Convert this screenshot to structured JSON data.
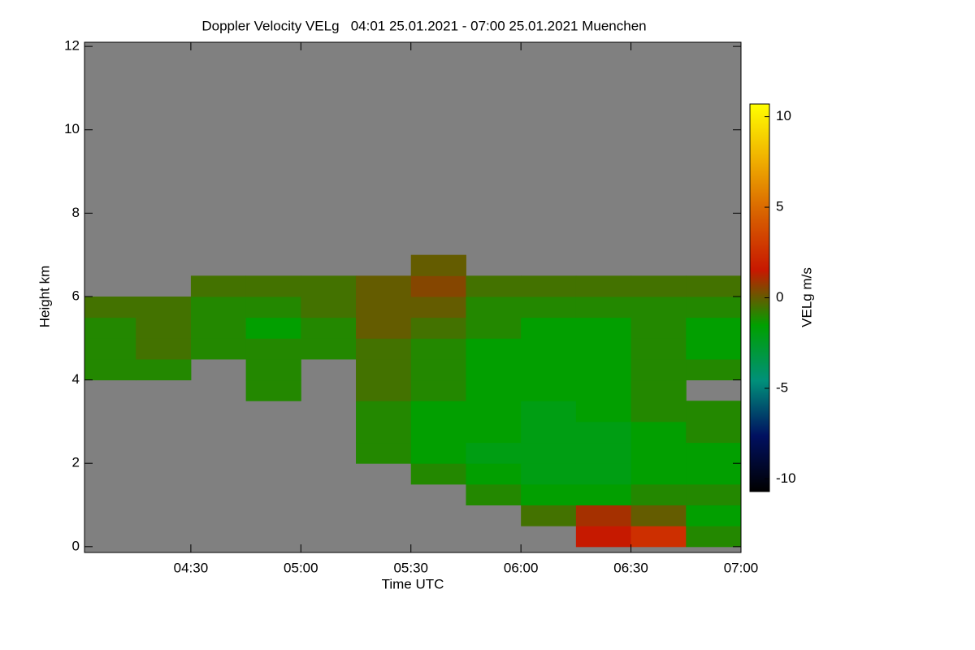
{
  "chart_data": {
    "type": "heatmap",
    "title": "Doppler Velocity VELg   04:01 25.01.2021 - 07:00 25.01.2021 Muenchen",
    "x_label": "Time UTC",
    "y_label": "Height km",
    "colorbar_label": "VELg m/s",
    "xlim": [
      4.0167,
      7.0
    ],
    "xticks": [
      {
        "value": 4.5,
        "label": "04:30"
      },
      {
        "value": 5.0,
        "label": "05:00"
      },
      {
        "value": 5.5,
        "label": "05:30"
      },
      {
        "value": 6.0,
        "label": "06:00"
      },
      {
        "value": 6.5,
        "label": "06:30"
      },
      {
        "value": 7.0,
        "label": "07:00"
      }
    ],
    "ylim": [
      -0.14,
      12.1
    ],
    "yticks": [
      0,
      2,
      4,
      6,
      8,
      10,
      12
    ],
    "zlim": [
      -10.7,
      10.7
    ],
    "zticks": [
      -10,
      -5,
      0,
      5,
      10
    ],
    "colorscale": [
      "#000000",
      "#001060",
      "#00907a",
      "#00a000",
      "#c81800",
      "#d86000",
      "#f0b000",
      "#ffff00"
    ],
    "nodata_color": "#808080",
    "xbins": [
      4.0167,
      4.25,
      4.5,
      4.75,
      5.0,
      5.25,
      5.5,
      5.75,
      6.0,
      6.25,
      6.5,
      6.75,
      7.0
    ],
    "ybins": [
      0,
      0.5,
      1.0,
      1.5,
      2.0,
      2.5,
      3.0,
      3.5,
      4.0,
      4.5,
      5.0,
      5.5,
      6.0,
      6.5,
      7.0
    ],
    "values": [
      [
        null,
        null,
        null,
        null,
        null,
        null,
        null,
        null,
        null,
        1.5,
        2.5,
        -1
      ],
      [
        null,
        null,
        null,
        null,
        null,
        null,
        null,
        null,
        -0.5,
        1,
        0,
        -1.5
      ],
      [
        null,
        null,
        null,
        null,
        null,
        null,
        null,
        -1,
        -1.5,
        -1.5,
        -1,
        -1
      ],
      [
        null,
        null,
        null,
        null,
        null,
        null,
        -1,
        -1.5,
        -2,
        -2,
        -1.5,
        -1.5
      ],
      [
        null,
        null,
        null,
        null,
        null,
        -1,
        -1.5,
        -2,
        -2,
        -2,
        -1.5,
        -1.5
      ],
      [
        null,
        null,
        null,
        null,
        null,
        -1,
        -1.5,
        -1.5,
        -2,
        -2,
        -1.5,
        -1
      ],
      [
        null,
        null,
        null,
        null,
        null,
        -1,
        -1.5,
        -1.5,
        -2,
        -1.5,
        -1,
        -1
      ],
      [
        null,
        null,
        null,
        -1,
        null,
        -0.5,
        -1,
        -1.5,
        -1.5,
        -1.5,
        -1,
        null
      ],
      [
        -1,
        -1,
        null,
        -1,
        null,
        -0.5,
        -1,
        -1.5,
        -1.5,
        -1.5,
        -1,
        -1
      ],
      [
        -1,
        -0.5,
        -1,
        -1,
        -1,
        -0.5,
        -1,
        -1.5,
        -1.5,
        -1.5,
        -1,
        -1.5
      ],
      [
        -1,
        -0.5,
        -1,
        -1.5,
        -1,
        0,
        -0.5,
        -1,
        -1.5,
        -1.5,
        -1,
        -1.5
      ],
      [
        -0.5,
        -0.5,
        -1,
        -1,
        -0.5,
        0,
        0,
        -1,
        -1,
        -1,
        -1,
        -1
      ],
      [
        null,
        null,
        -0.5,
        -0.5,
        -0.5,
        0,
        0.5,
        -0.5,
        -0.5,
        -0.5,
        -0.5,
        -0.5
      ],
      [
        null,
        null,
        null,
        null,
        null,
        null,
        0,
        null,
        null,
        null,
        null,
        null
      ]
    ]
  }
}
